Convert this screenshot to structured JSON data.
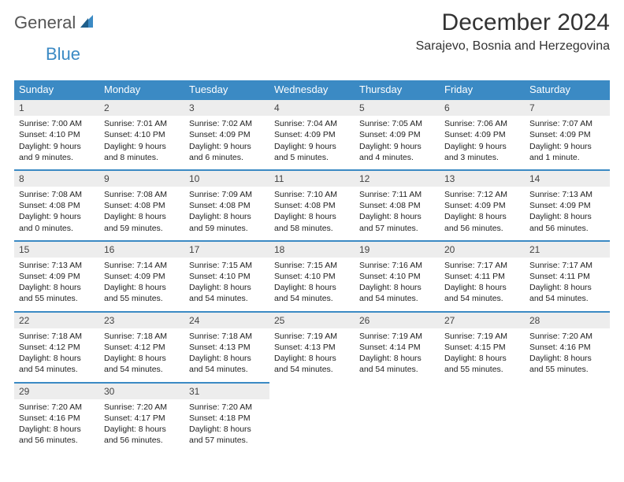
{
  "brand": {
    "part1": "General",
    "part2": "Blue"
  },
  "title": "December 2024",
  "location": "Sarajevo, Bosnia and Herzegovina",
  "colors": {
    "header_bg": "#3b8ac4",
    "daynum_bg": "#ededed",
    "border_top": "#3b8ac4",
    "text": "#222222",
    "title_text": "#333333"
  },
  "layout": {
    "columns": 7,
    "font_family": "Arial",
    "daynum_fontsize": 12,
    "body_fontsize": 10.5,
    "header_fontsize": 13,
    "title_fontsize": 30,
    "location_fontsize": 16
  },
  "weekdays": [
    "Sunday",
    "Monday",
    "Tuesday",
    "Wednesday",
    "Thursday",
    "Friday",
    "Saturday"
  ],
  "weeks": [
    [
      {
        "n": "1",
        "sr": "Sunrise: 7:00 AM",
        "ss": "Sunset: 4:10 PM",
        "dl": "Daylight: 9 hours and 9 minutes."
      },
      {
        "n": "2",
        "sr": "Sunrise: 7:01 AM",
        "ss": "Sunset: 4:10 PM",
        "dl": "Daylight: 9 hours and 8 minutes."
      },
      {
        "n": "3",
        "sr": "Sunrise: 7:02 AM",
        "ss": "Sunset: 4:09 PM",
        "dl": "Daylight: 9 hours and 6 minutes."
      },
      {
        "n": "4",
        "sr": "Sunrise: 7:04 AM",
        "ss": "Sunset: 4:09 PM",
        "dl": "Daylight: 9 hours and 5 minutes."
      },
      {
        "n": "5",
        "sr": "Sunrise: 7:05 AM",
        "ss": "Sunset: 4:09 PM",
        "dl": "Daylight: 9 hours and 4 minutes."
      },
      {
        "n": "6",
        "sr": "Sunrise: 7:06 AM",
        "ss": "Sunset: 4:09 PM",
        "dl": "Daylight: 9 hours and 3 minutes."
      },
      {
        "n": "7",
        "sr": "Sunrise: 7:07 AM",
        "ss": "Sunset: 4:09 PM",
        "dl": "Daylight: 9 hours and 1 minute."
      }
    ],
    [
      {
        "n": "8",
        "sr": "Sunrise: 7:08 AM",
        "ss": "Sunset: 4:08 PM",
        "dl": "Daylight: 9 hours and 0 minutes."
      },
      {
        "n": "9",
        "sr": "Sunrise: 7:08 AM",
        "ss": "Sunset: 4:08 PM",
        "dl": "Daylight: 8 hours and 59 minutes."
      },
      {
        "n": "10",
        "sr": "Sunrise: 7:09 AM",
        "ss": "Sunset: 4:08 PM",
        "dl": "Daylight: 8 hours and 59 minutes."
      },
      {
        "n": "11",
        "sr": "Sunrise: 7:10 AM",
        "ss": "Sunset: 4:08 PM",
        "dl": "Daylight: 8 hours and 58 minutes."
      },
      {
        "n": "12",
        "sr": "Sunrise: 7:11 AM",
        "ss": "Sunset: 4:08 PM",
        "dl": "Daylight: 8 hours and 57 minutes."
      },
      {
        "n": "13",
        "sr": "Sunrise: 7:12 AM",
        "ss": "Sunset: 4:09 PM",
        "dl": "Daylight: 8 hours and 56 minutes."
      },
      {
        "n": "14",
        "sr": "Sunrise: 7:13 AM",
        "ss": "Sunset: 4:09 PM",
        "dl": "Daylight: 8 hours and 56 minutes."
      }
    ],
    [
      {
        "n": "15",
        "sr": "Sunrise: 7:13 AM",
        "ss": "Sunset: 4:09 PM",
        "dl": "Daylight: 8 hours and 55 minutes."
      },
      {
        "n": "16",
        "sr": "Sunrise: 7:14 AM",
        "ss": "Sunset: 4:09 PM",
        "dl": "Daylight: 8 hours and 55 minutes."
      },
      {
        "n": "17",
        "sr": "Sunrise: 7:15 AM",
        "ss": "Sunset: 4:10 PM",
        "dl": "Daylight: 8 hours and 54 minutes."
      },
      {
        "n": "18",
        "sr": "Sunrise: 7:15 AM",
        "ss": "Sunset: 4:10 PM",
        "dl": "Daylight: 8 hours and 54 minutes."
      },
      {
        "n": "19",
        "sr": "Sunrise: 7:16 AM",
        "ss": "Sunset: 4:10 PM",
        "dl": "Daylight: 8 hours and 54 minutes."
      },
      {
        "n": "20",
        "sr": "Sunrise: 7:17 AM",
        "ss": "Sunset: 4:11 PM",
        "dl": "Daylight: 8 hours and 54 minutes."
      },
      {
        "n": "21",
        "sr": "Sunrise: 7:17 AM",
        "ss": "Sunset: 4:11 PM",
        "dl": "Daylight: 8 hours and 54 minutes."
      }
    ],
    [
      {
        "n": "22",
        "sr": "Sunrise: 7:18 AM",
        "ss": "Sunset: 4:12 PM",
        "dl": "Daylight: 8 hours and 54 minutes."
      },
      {
        "n": "23",
        "sr": "Sunrise: 7:18 AM",
        "ss": "Sunset: 4:12 PM",
        "dl": "Daylight: 8 hours and 54 minutes."
      },
      {
        "n": "24",
        "sr": "Sunrise: 7:18 AM",
        "ss": "Sunset: 4:13 PM",
        "dl": "Daylight: 8 hours and 54 minutes."
      },
      {
        "n": "25",
        "sr": "Sunrise: 7:19 AM",
        "ss": "Sunset: 4:13 PM",
        "dl": "Daylight: 8 hours and 54 minutes."
      },
      {
        "n": "26",
        "sr": "Sunrise: 7:19 AM",
        "ss": "Sunset: 4:14 PM",
        "dl": "Daylight: 8 hours and 54 minutes."
      },
      {
        "n": "27",
        "sr": "Sunrise: 7:19 AM",
        "ss": "Sunset: 4:15 PM",
        "dl": "Daylight: 8 hours and 55 minutes."
      },
      {
        "n": "28",
        "sr": "Sunrise: 7:20 AM",
        "ss": "Sunset: 4:16 PM",
        "dl": "Daylight: 8 hours and 55 minutes."
      }
    ],
    [
      {
        "n": "29",
        "sr": "Sunrise: 7:20 AM",
        "ss": "Sunset: 4:16 PM",
        "dl": "Daylight: 8 hours and 56 minutes."
      },
      {
        "n": "30",
        "sr": "Sunrise: 7:20 AM",
        "ss": "Sunset: 4:17 PM",
        "dl": "Daylight: 8 hours and 56 minutes."
      },
      {
        "n": "31",
        "sr": "Sunrise: 7:20 AM",
        "ss": "Sunset: 4:18 PM",
        "dl": "Daylight: 8 hours and 57 minutes."
      },
      null,
      null,
      null,
      null
    ]
  ]
}
